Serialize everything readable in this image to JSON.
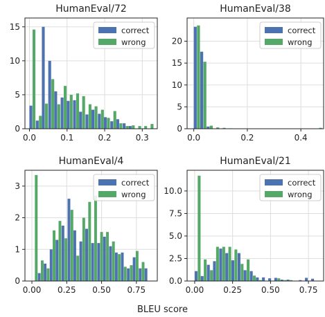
{
  "figure": {
    "xlabel": "BLEU score"
  },
  "colors": {
    "correct": "#4c72b0",
    "wrong": "#55a868",
    "grid": "#dddddd",
    "axis": "#222222"
  },
  "chart_data": [
    {
      "type": "bar",
      "title": "HumanEval/72",
      "legend": [
        "correct",
        "wrong"
      ],
      "legend_position": "top-right",
      "grid": true,
      "xlim": [
        -0.012,
        0.34
      ],
      "ylim": [
        0,
        16.3
      ],
      "xticks": [
        0.0,
        0.1,
        0.2,
        0.3
      ],
      "xtick_labels": [
        "0.0",
        "0.1",
        "0.2",
        "0.3"
      ],
      "yticks": [
        0,
        5,
        10,
        15
      ],
      "ytick_labels": [
        "0",
        "5",
        "10",
        "15"
      ],
      "bin_width": 0.0165,
      "series": [
        {
          "name": "correct",
          "bins": [
            0.0,
            0.017,
            0.033,
            0.05,
            0.066,
            0.083,
            0.099,
            0.116,
            0.132,
            0.149,
            0.165,
            0.182,
            0.198,
            0.215,
            0.231,
            0.248,
            0.264,
            0.281,
            0.297,
            0.314
          ],
          "values": [
            3.4,
            1.2,
            15.0,
            10.0,
            5.5,
            4.6,
            4.1,
            4.2,
            2.5,
            2.1,
            2.8,
            2.2,
            1.7,
            1.1,
            1.4,
            0.8,
            0.4,
            0,
            0,
            0
          ]
        },
        {
          "name": "wrong",
          "bins": [
            0.0,
            0.017,
            0.033,
            0.05,
            0.066,
            0.083,
            0.099,
            0.116,
            0.132,
            0.149,
            0.165,
            0.182,
            0.198,
            0.215,
            0.231,
            0.248,
            0.264,
            0.281,
            0.297,
            0.314
          ],
          "values": [
            14.6,
            1.9,
            3.7,
            7.3,
            3.6,
            6.3,
            5.0,
            5.2,
            4.8,
            3.6,
            3.3,
            2.8,
            1.6,
            2.6,
            0.8,
            0.4,
            0.5,
            0.4,
            0.4,
            0.7
          ]
        }
      ]
    },
    {
      "type": "bar",
      "title": "HumanEval/38",
      "legend": [
        "correct",
        "wrong"
      ],
      "legend_position": "top-right",
      "grid": true,
      "xlim": [
        -0.025,
        0.485
      ],
      "ylim": [
        0,
        25.3
      ],
      "xticks": [
        0.0,
        0.2,
        0.4
      ],
      "xtick_labels": [
        "0.0",
        "0.2",
        "0.4"
      ],
      "yticks": [
        0,
        5,
        10,
        15,
        20
      ],
      "ytick_labels": [
        "0",
        "5",
        "10",
        "15",
        "20"
      ],
      "bin_width": 0.024,
      "series": [
        {
          "name": "correct",
          "bins": [
            0.0,
            0.024,
            0.048,
            0.072,
            0.096,
            0.12,
            0.144,
            0.168,
            0.192,
            0.216,
            0.24,
            0.264,
            0.288,
            0.312,
            0.336,
            0.36,
            0.384,
            0.408,
            0.432,
            0.456
          ],
          "values": [
            23.3,
            17.6,
            0.5,
            0,
            0,
            0,
            0,
            0,
            0,
            0,
            0,
            0,
            0,
            0,
            0,
            0,
            0,
            0,
            0,
            0
          ]
        },
        {
          "name": "wrong",
          "bins": [
            0.0,
            0.024,
            0.048,
            0.072,
            0.096,
            0.12,
            0.144,
            0.168,
            0.192,
            0.216,
            0.24,
            0.264,
            0.288,
            0.312,
            0.336,
            0.36,
            0.384,
            0.408,
            0.432,
            0.456
          ],
          "values": [
            23.6,
            15.3,
            0.7,
            0.3,
            0.2,
            0.1,
            0,
            0,
            0,
            0,
            0,
            0,
            0,
            0,
            0,
            0,
            0,
            0,
            0,
            0.2
          ]
        }
      ]
    },
    {
      "type": "bar",
      "title": "HumanEval/4",
      "legend": [
        "correct",
        "wrong"
      ],
      "legend_position": "top-right",
      "grid": true,
      "xlim": [
        -0.05,
        0.9
      ],
      "ylim": [
        0,
        3.5
      ],
      "xticks": [
        0.0,
        0.25,
        0.5,
        0.75
      ],
      "xtick_labels": [
        "0.00",
        "0.25",
        "0.50",
        "0.75"
      ],
      "yticks": [
        0,
        1,
        2,
        3
      ],
      "ytick_labels": [
        "0",
        "1",
        "2",
        "3"
      ],
      "bin_width": 0.0426,
      "series": [
        {
          "name": "correct",
          "bins": [
            0.0,
            0.043,
            0.085,
            0.128,
            0.17,
            0.213,
            0.256,
            0.298,
            0.341,
            0.383,
            0.426,
            0.469,
            0.511,
            0.554,
            0.596,
            0.639,
            0.682,
            0.724,
            0.767,
            0.809
          ],
          "values": [
            0,
            0.25,
            0.55,
            1.0,
            1.3,
            1.75,
            2.6,
            1.6,
            1.25,
            1.65,
            1.2,
            1.2,
            1.4,
            1.1,
            0.9,
            0.9,
            0.4,
            0.75,
            0.4,
            0.4
          ]
        },
        {
          "name": "wrong",
          "bins": [
            0.0,
            0.043,
            0.085,
            0.128,
            0.17,
            0.213,
            0.256,
            0.298,
            0.341,
            0.383,
            0.426,
            0.469,
            0.511,
            0.554,
            0.596,
            0.639,
            0.682,
            0.724,
            0.767,
            0.809
          ],
          "values": [
            3.35,
            0.65,
            0.4,
            1.6,
            1.9,
            1.35,
            2.25,
            0.8,
            2.0,
            2.5,
            2.7,
            1.55,
            1.55,
            1.25,
            0.85,
            0.45,
            0.5,
            0.95,
            0.6,
            0
          ]
        }
      ]
    },
    {
      "type": "bar",
      "title": "HumanEval/21",
      "legend": [
        "correct",
        "wrong"
      ],
      "legend_position": "top-right",
      "grid": true,
      "xlim": [
        -0.05,
        0.85
      ],
      "ylim": [
        0,
        12.3
      ],
      "xticks": [
        0.0,
        0.25,
        0.5,
        0.75
      ],
      "xtick_labels": [
        "0.00",
        "0.25",
        "0.50",
        "0.75"
      ],
      "yticks": [
        0,
        2.5,
        5.0,
        7.5,
        10.0
      ],
      "ytick_labels": [
        "0.0",
        "2.5",
        "5.0",
        "7.5",
        "10.0"
      ],
      "bin_width": 0.0404,
      "series": [
        {
          "name": "correct",
          "bins": [
            0.0,
            0.04,
            0.081,
            0.121,
            0.162,
            0.202,
            0.242,
            0.283,
            0.323,
            0.364,
            0.404,
            0.444,
            0.485,
            0.525,
            0.566,
            0.606,
            0.646,
            0.687,
            0.727,
            0.768
          ],
          "values": [
            1.1,
            0.55,
            1.8,
            2.2,
            3.6,
            3.1,
            2.3,
            3.1,
            1.2,
            1.1,
            0.4,
            0.4,
            0.3,
            0.35,
            0.15,
            0.15,
            0,
            0.1,
            0.35,
            0.25
          ]
        },
        {
          "name": "wrong",
          "bins": [
            0.0,
            0.04,
            0.081,
            0.121,
            0.162,
            0.202,
            0.242,
            0.283,
            0.323,
            0.364,
            0.404,
            0.444,
            0.485,
            0.525,
            0.566,
            0.606,
            0.646,
            0.687,
            0.727,
            0.768
          ],
          "values": [
            11.7,
            2.4,
            1.2,
            3.8,
            3.8,
            3.8,
            3.5,
            1.9,
            2.4,
            0.6,
            0.1,
            0,
            0,
            0.3,
            0.1,
            0.1,
            0,
            0,
            0,
            0
          ]
        }
      ]
    }
  ]
}
